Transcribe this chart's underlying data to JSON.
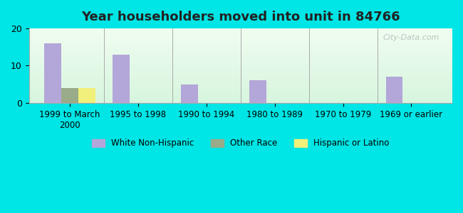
{
  "title": "Year householders moved into unit in 84766",
  "categories": [
    "1999 to March\n2000",
    "1995 to 1998",
    "1990 to 1994",
    "1980 to 1989",
    "1970 to 1979",
    "1969 or earlier"
  ],
  "white_non_hispanic": [
    16,
    13,
    5,
    6,
    0,
    7
  ],
  "other_race": [
    4,
    0,
    0,
    0,
    0,
    0
  ],
  "hispanic_or_latino": [
    4,
    0,
    0,
    0,
    0,
    0
  ],
  "color_white": "#b3a6d9",
  "color_other": "#9aab89",
  "color_hispanic": "#f0f07a",
  "ylim": [
    0,
    20
  ],
  "yticks": [
    0,
    10,
    20
  ],
  "bar_width": 0.25,
  "bg_outer": "#00e5e5",
  "bg_inner_top": "#f0f8f0",
  "bg_inner_bottom": "#d8f0d8",
  "watermark": "City-Data.com"
}
